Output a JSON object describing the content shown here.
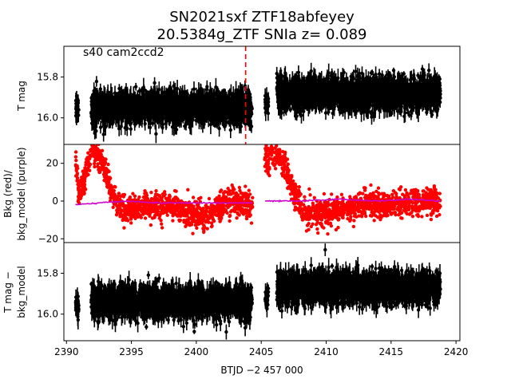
{
  "figure": {
    "title_line1": "SN2021sxf  ZTF18abfeyey",
    "title_line2": "20.5384g_ZTF SNIa z= 0.089",
    "annotation": "s40 cam2ccd2"
  },
  "chart_data": [
    {
      "type": "scatter",
      "name": "top",
      "ylabel": "T mag",
      "xlim": [
        2389.8,
        2420.3
      ],
      "ylim": [
        16.13,
        15.65
      ],
      "y_inverted": true,
      "yticks": [
        15.8,
        16.0
      ],
      "ytick_labels": [
        "15.8",
        "16.0"
      ],
      "marker_color": "#000000",
      "vline": {
        "x": 2403.8,
        "color": "#ff0000",
        "style": "dashed"
      },
      "segments": [
        {
          "x0": 2390.7,
          "x1": 2390.95,
          "center": 15.96,
          "scatter": 0.05
        },
        {
          "x0": 2391.9,
          "x1": 2404.3,
          "center": 15.95,
          "scatter": 0.07
        },
        {
          "x0": 2405.3,
          "x1": 2405.55,
          "center": 15.92,
          "scatter": 0.04
        },
        {
          "x0": 2406.2,
          "x1": 2418.8,
          "center": 15.88,
          "scatter": 0.07
        }
      ]
    },
    {
      "type": "scatter",
      "name": "middle",
      "ylabel_line1": "Bkg (red)/",
      "ylabel_line2": "bkg_model (purple)",
      "xlim": [
        2389.8,
        2420.3
      ],
      "ylim": [
        -22,
        30
      ],
      "yticks": [
        -20,
        0,
        20
      ],
      "ytick_labels": [
        "−20",
        "0",
        "20"
      ],
      "series": [
        {
          "name": "Bkg",
          "color": "#ff0000",
          "keypoints": [
            [
              2390.7,
              22
            ],
            [
              2391.0,
              2
            ],
            [
              2392.0,
              28
            ],
            [
              2392.8,
              20
            ],
            [
              2393.6,
              2
            ],
            [
              2394.4,
              -5
            ],
            [
              2396.0,
              -3
            ],
            [
              2398.0,
              -2
            ],
            [
              2399.5,
              -6
            ],
            [
              2400.5,
              -10
            ],
            [
              2401.5,
              -5
            ],
            [
              2402.5,
              0
            ],
            [
              2404.3,
              -2
            ],
            [
              2405.3,
              22
            ],
            [
              2406.2,
              25
            ],
            [
              2406.8,
              18
            ],
            [
              2407.6,
              2
            ],
            [
              2408.5,
              -7
            ],
            [
              2410.0,
              -6
            ],
            [
              2411.5,
              -4
            ],
            [
              2413.0,
              -1
            ],
            [
              2415.0,
              -2
            ],
            [
              2417.0,
              0
            ],
            [
              2418.8,
              0
            ]
          ],
          "scatter": 3.5
        },
        {
          "name": "bkg_model",
          "color": "#cc00cc",
          "keypoints": [
            [
              2390.7,
              -2
            ],
            [
              2392.5,
              -1
            ],
            [
              2394.5,
              0
            ],
            [
              2397.0,
              -1
            ],
            [
              2400.0,
              -1
            ],
            [
              2404.3,
              -1
            ],
            [
              2405.3,
              0
            ],
            [
              2408.0,
              0
            ],
            [
              2411.0,
              1
            ],
            [
              2414.0,
              0
            ],
            [
              2416.5,
              1
            ],
            [
              2418.8,
              0
            ]
          ]
        }
      ]
    },
    {
      "type": "scatter",
      "name": "bottom",
      "ylabel_line1": "T mag −",
      "ylabel_line2": "bkg_model",
      "xlabel": "BTJD −2 457 000",
      "xlim": [
        2389.8,
        2420.3
      ],
      "ylim": [
        16.13,
        15.65
      ],
      "y_inverted": true,
      "yticks": [
        15.8,
        16.0
      ],
      "ytick_labels": [
        "15.8",
        "16.0"
      ],
      "xticks": [
        2390,
        2395,
        2400,
        2405,
        2410,
        2415,
        2420
      ],
      "xtick_labels": [
        "2390",
        "2395",
        "2400",
        "2405",
        "2410",
        "2415",
        "2420"
      ],
      "marker_color": "#000000",
      "segments": [
        {
          "x0": 2390.7,
          "x1": 2390.95,
          "center": 15.96,
          "scatter": 0.05
        },
        {
          "x0": 2391.9,
          "x1": 2404.3,
          "center": 15.94,
          "scatter": 0.07
        },
        {
          "x0": 2405.3,
          "x1": 2405.55,
          "center": 15.92,
          "scatter": 0.04
        },
        {
          "x0": 2406.2,
          "x1": 2418.8,
          "center": 15.87,
          "scatter": 0.07
        }
      ]
    }
  ]
}
